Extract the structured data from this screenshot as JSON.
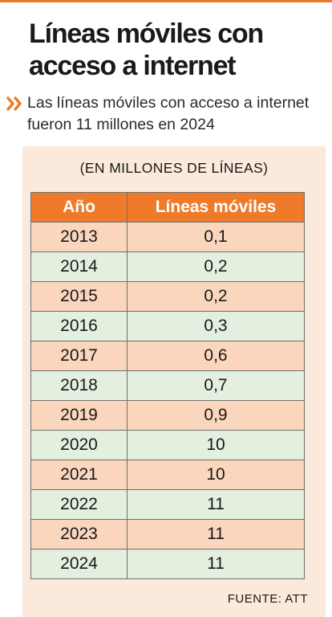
{
  "header": {
    "title": "Líneas móviles con acceso a internet",
    "subtitle": "Las líneas móviles con acceso a internet fueron 11 millones en 2024"
  },
  "table": {
    "units": "(EN MILLONES DE LÍNEAS)",
    "columns": [
      "Año",
      "Líneas móviles"
    ],
    "rows": [
      {
        "year": "2013",
        "value": "0,1"
      },
      {
        "year": "2014",
        "value": "0,2"
      },
      {
        "year": "2015",
        "value": "0,2"
      },
      {
        "year": "2016",
        "value": "0,3"
      },
      {
        "year": "2017",
        "value": "0,6"
      },
      {
        "year": "2018",
        "value": "0,7"
      },
      {
        "year": "2019",
        "value": "0,9"
      },
      {
        "year": "2020",
        "value": "10"
      },
      {
        "year": "2021",
        "value": "10"
      },
      {
        "year": "2022",
        "value": "11"
      },
      {
        "year": "2023",
        "value": "11"
      },
      {
        "year": "2024",
        "value": "11"
      }
    ]
  },
  "source": "FUENTE: ATT",
  "colors": {
    "accent": "#ee7a2a",
    "row_odd": "#f9d6bc",
    "row_even": "#e3efdf",
    "panel": "#fbe9dc"
  },
  "icons": {
    "bullet": "double-chevron-right-icon"
  },
  "chart_data": {
    "type": "table",
    "title": "Líneas móviles con acceso a internet",
    "subtitle": "Las líneas móviles con acceso a internet fueron 11 millones en 2024",
    "units": "(EN MILLONES DE LÍNEAS)",
    "columns": [
      "Año",
      "Líneas móviles"
    ],
    "categories": [
      "2013",
      "2014",
      "2015",
      "2016",
      "2017",
      "2018",
      "2019",
      "2020",
      "2021",
      "2022",
      "2023",
      "2024"
    ],
    "values": [
      0.1,
      0.2,
      0.2,
      0.3,
      0.6,
      0.7,
      0.9,
      10,
      10,
      11,
      11,
      11
    ],
    "source": "FUENTE: ATT"
  }
}
